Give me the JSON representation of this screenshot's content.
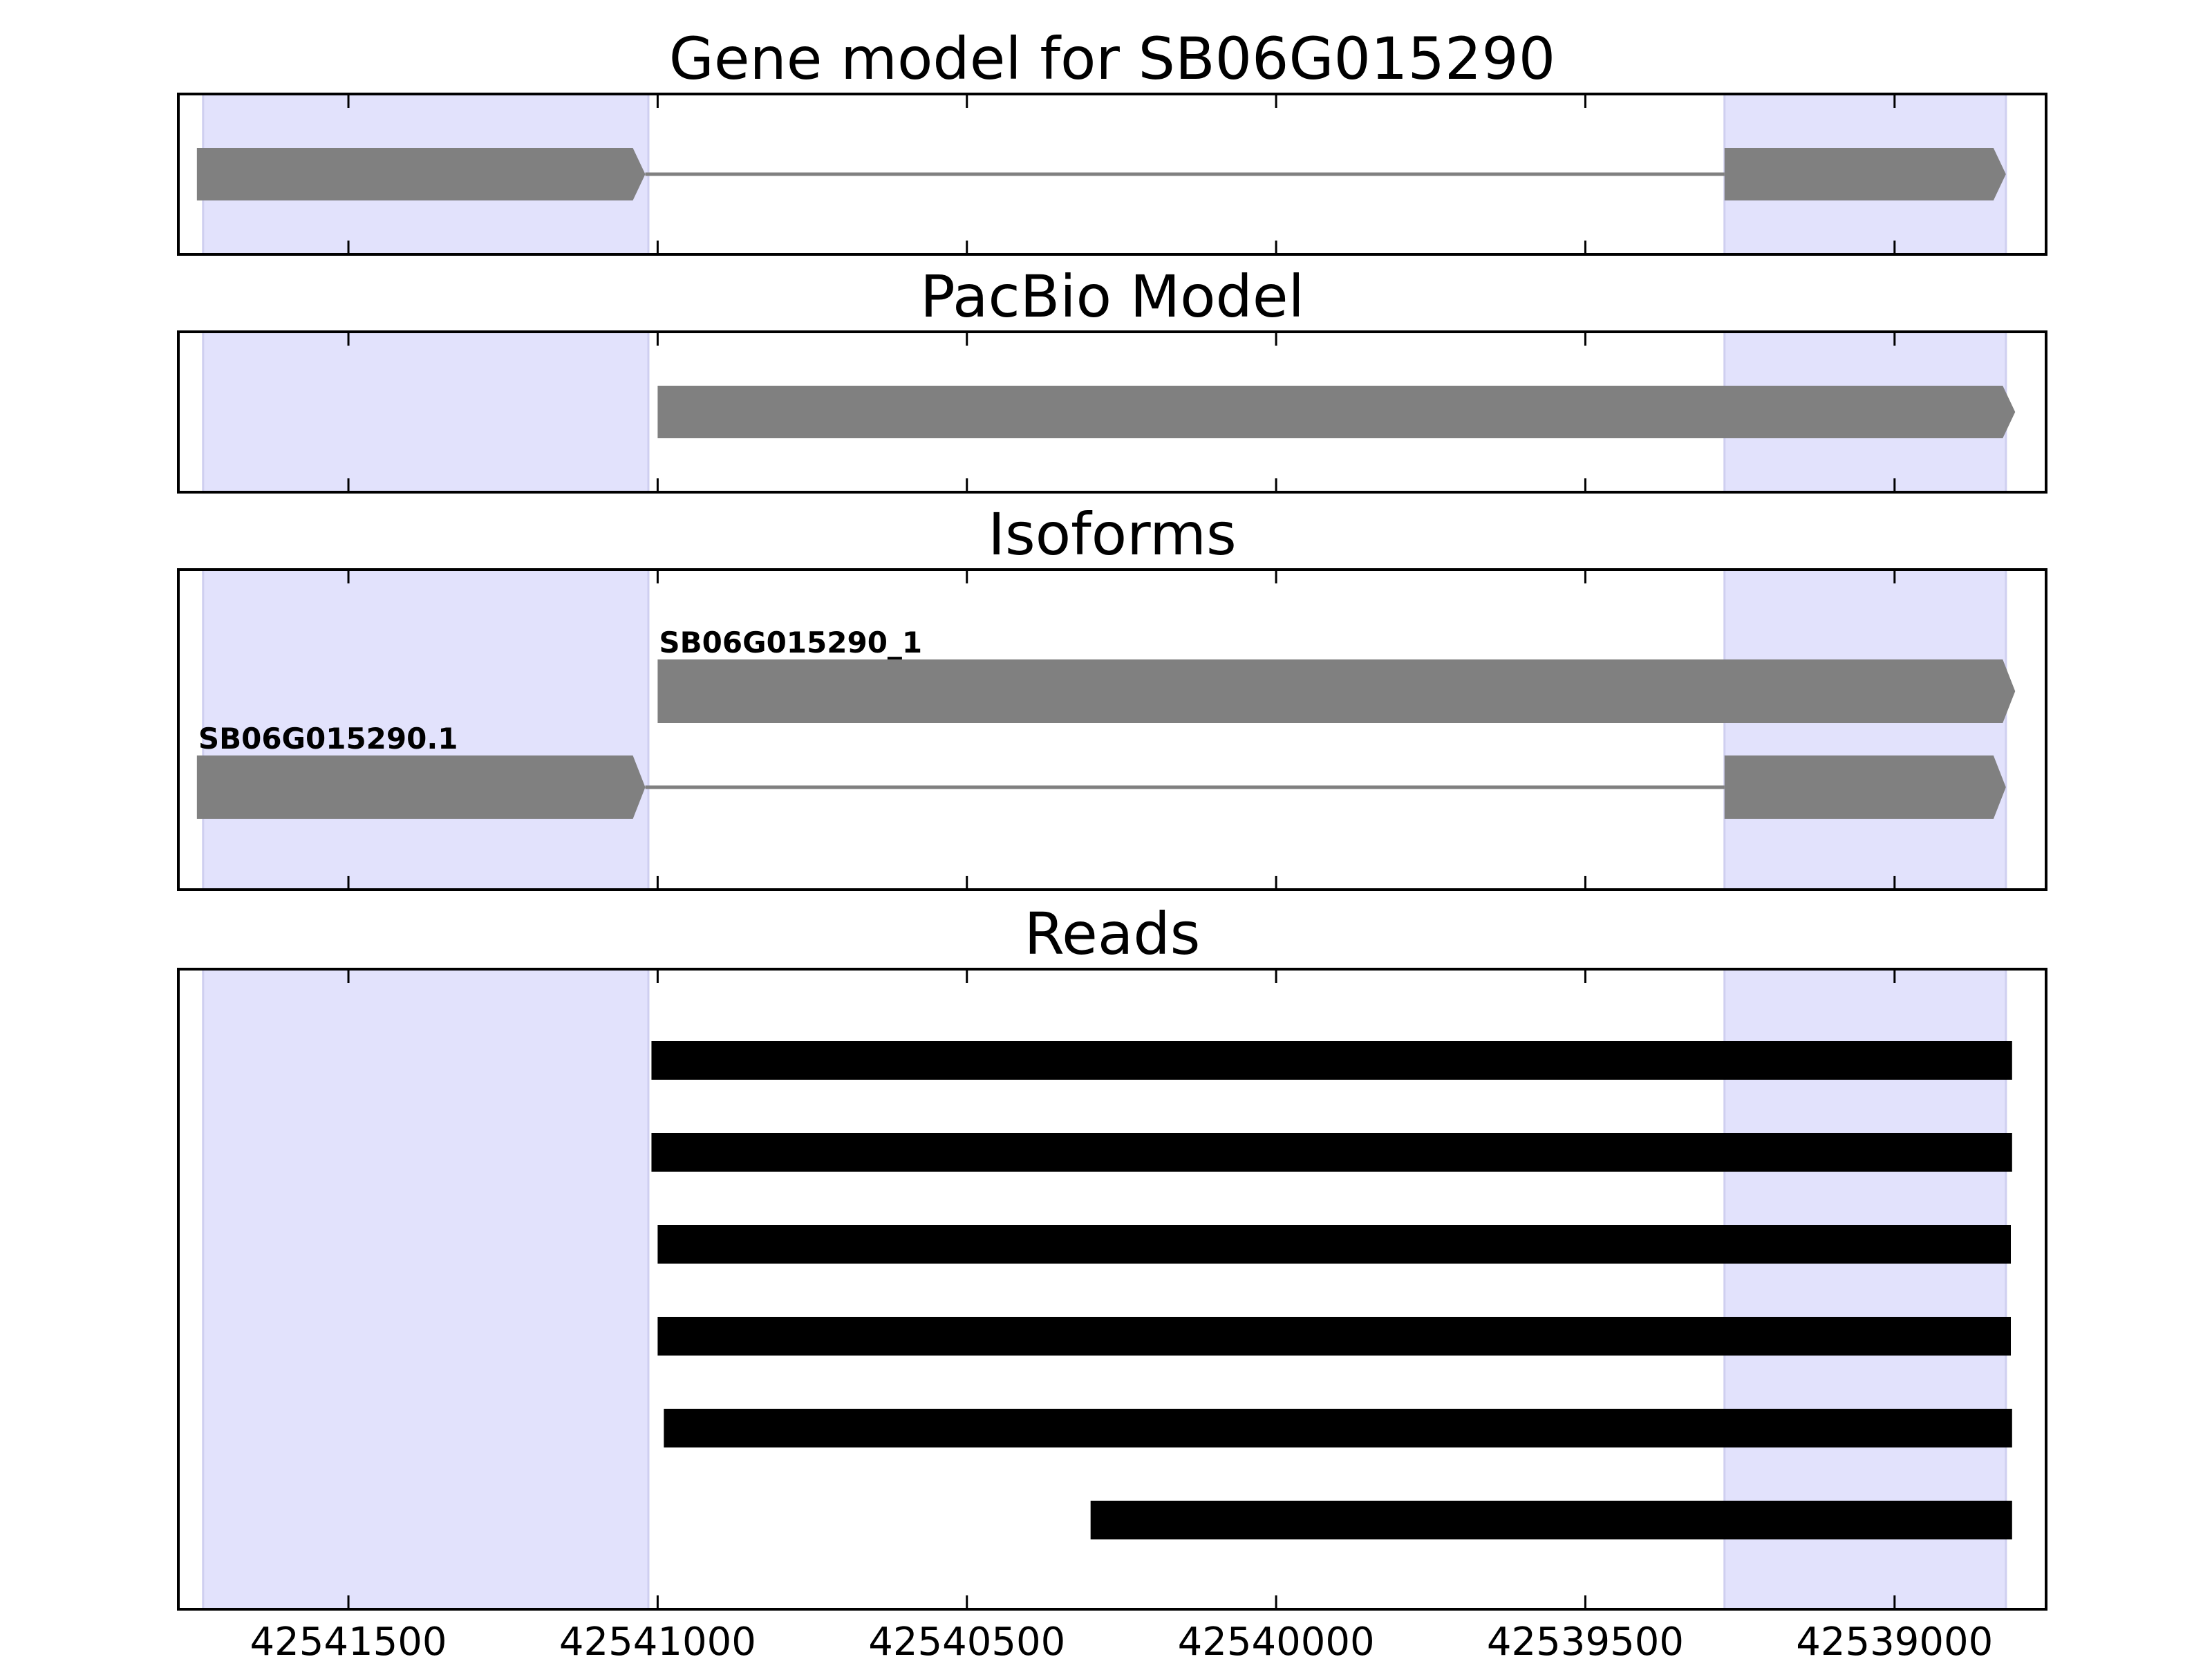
{
  "chart_data": {
    "type": "gene-track",
    "x_axis": {
      "reversed": true,
      "range": [
        42541775,
        42538755
      ],
      "ticks": [
        42541500,
        42541000,
        42540500,
        42540000,
        42539500,
        42539000
      ],
      "tick_labels": [
        "42541500",
        "42541000",
        "42540500",
        "42540000",
        "42539500",
        "42539000"
      ]
    },
    "highlight_color": "#e2e2fc",
    "exon_color": "#808080",
    "read_color": "#000000",
    "highlight_regions": [
      {
        "start": 42541735,
        "end": 42541015
      },
      {
        "start": 42539275,
        "end": 42538820
      }
    ],
    "panels": [
      {
        "title": "Gene model for SB06G015290",
        "tracks": [
          {
            "label": "",
            "exons": [
              {
                "start": 42541745,
                "end": 42541020
              },
              {
                "start": 42539275,
                "end": 42538820
              }
            ]
          }
        ]
      },
      {
        "title": "PacBio Model",
        "tracks": [
          {
            "label": "",
            "exons": [
              {
                "start": 42541000,
                "end": 42538805
              }
            ]
          }
        ]
      },
      {
        "title": "Isoforms",
        "tracks": [
          {
            "label": "SB06G015290_1",
            "exons": [
              {
                "start": 42541000,
                "end": 42538805
              }
            ]
          },
          {
            "label": "SB06G015290.1",
            "exons": [
              {
                "start": 42541745,
                "end": 42541020
              },
              {
                "start": 42539275,
                "end": 42538820
              }
            ]
          }
        ]
      },
      {
        "title": "Reads",
        "reads": [
          {
            "start": 42541010,
            "end": 42538810
          },
          {
            "start": 42541010,
            "end": 42538810
          },
          {
            "start": 42541000,
            "end": 42538812
          },
          {
            "start": 42541000,
            "end": 42538812
          },
          {
            "start": 42540990,
            "end": 42538810
          },
          {
            "start": 42540300,
            "end": 42538810
          }
        ]
      }
    ]
  }
}
